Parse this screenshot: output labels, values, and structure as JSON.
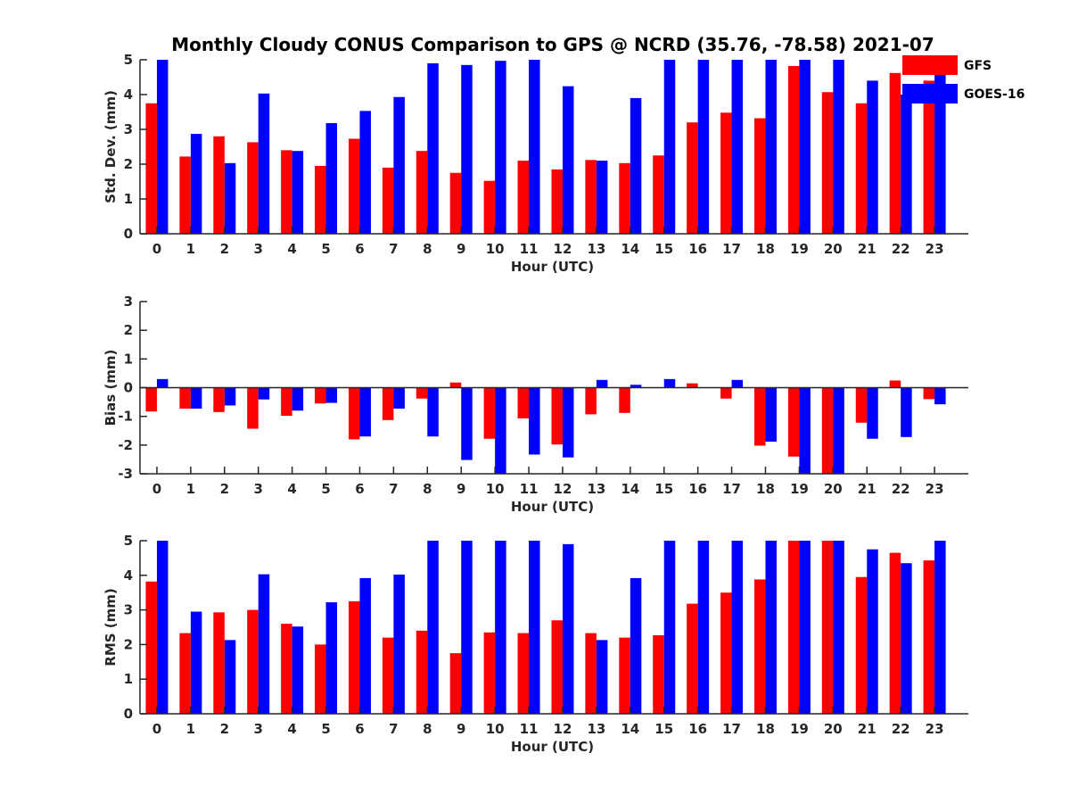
{
  "title": "Monthly Cloudy CONUS Comparison to GPS @ NCRD (35.76, -78.58) 2021-07",
  "colors": {
    "GFS": "#ff0000",
    "GOES-16": "#0000ff"
  },
  "legend": [
    "GFS",
    "GOES-16"
  ],
  "chart_data": [
    {
      "type": "bar",
      "xlabel": "Hour (UTC)",
      "ylabel": "Std. Dev. (mm)",
      "ylim": [
        0,
        5
      ],
      "yticks": [
        0,
        1,
        2,
        3,
        4,
        5
      ],
      "legend": "top-right",
      "categories": [
        "0",
        "1",
        "2",
        "3",
        "4",
        "5",
        "6",
        "7",
        "8",
        "9",
        "10",
        "11",
        "12",
        "13",
        "14",
        "15",
        "16",
        "17",
        "18",
        "19",
        "20",
        "21",
        "22",
        "23"
      ],
      "series": [
        {
          "name": "GFS",
          "values": [
            3.75,
            2.22,
            2.8,
            2.63,
            2.4,
            1.95,
            2.73,
            1.9,
            2.38,
            1.75,
            1.52,
            2.1,
            1.85,
            2.12,
            2.03,
            2.25,
            3.2,
            3.48,
            3.32,
            4.82,
            4.07,
            3.75,
            4.62,
            4.4
          ]
        },
        {
          "name": "GOES-16",
          "values": [
            5,
            2.87,
            2.03,
            4.03,
            2.38,
            3.18,
            3.53,
            3.93,
            4.9,
            4.85,
            4.97,
            5,
            4.24,
            2.1,
            3.9,
            5,
            5,
            5,
            5,
            5,
            5,
            4.4,
            4,
            4.8
          ]
        }
      ]
    },
    {
      "type": "bar",
      "xlabel": "Hour (UTC)",
      "ylabel": "Bias (mm)",
      "ylim": [
        -3,
        3
      ],
      "yticks": [
        -3,
        -2,
        -1,
        0,
        1,
        2,
        3
      ],
      "categories": [
        "0",
        "1",
        "2",
        "3",
        "4",
        "5",
        "6",
        "7",
        "8",
        "9",
        "10",
        "11",
        "12",
        "13",
        "14",
        "15",
        "16",
        "17",
        "18",
        "19",
        "20",
        "21",
        "22",
        "23"
      ],
      "series": [
        {
          "name": "GFS",
          "values": [
            -0.83,
            -0.73,
            -0.85,
            -1.43,
            -0.98,
            -0.55,
            -1.8,
            -1.13,
            -0.38,
            0.18,
            -1.78,
            -1.07,
            -1.98,
            -0.93,
            -0.88,
            0.0,
            0.15,
            -0.38,
            -2.02,
            -2.4,
            -3.0,
            -1.22,
            0.25,
            -0.4
          ]
        },
        {
          "name": "GOES-16",
          "values": [
            0.3,
            -0.73,
            -0.62,
            -0.41,
            -0.8,
            -0.53,
            -1.7,
            -0.73,
            -1.7,
            -2.52,
            -3.0,
            -2.33,
            -2.43,
            0.27,
            0.1,
            0.3,
            0.0,
            0.27,
            -1.88,
            -3.0,
            -3.0,
            -1.78,
            -1.72,
            -0.58
          ]
        }
      ]
    },
    {
      "type": "bar",
      "xlabel": "Hour (UTC)",
      "ylabel": "RMS (mm)",
      "ylim": [
        0,
        5
      ],
      "yticks": [
        0,
        1,
        2,
        3,
        4,
        5
      ],
      "categories": [
        "0",
        "1",
        "2",
        "3",
        "4",
        "5",
        "6",
        "7",
        "8",
        "9",
        "10",
        "11",
        "12",
        "13",
        "14",
        "15",
        "16",
        "17",
        "18",
        "19",
        "20",
        "21",
        "22",
        "23"
      ],
      "series": [
        {
          "name": "GFS",
          "values": [
            3.82,
            2.33,
            2.93,
            3.0,
            2.6,
            2.0,
            3.25,
            2.2,
            2.4,
            1.75,
            2.35,
            2.33,
            2.7,
            2.33,
            2.2,
            2.27,
            3.18,
            3.5,
            3.88,
            5,
            5,
            3.95,
            4.65,
            4.43
          ]
        },
        {
          "name": "GOES-16",
          "values": [
            5,
            2.95,
            2.13,
            4.03,
            2.52,
            3.22,
            3.92,
            4.02,
            5,
            5,
            5,
            5,
            4.9,
            2.13,
            3.92,
            5,
            5,
            5,
            5,
            5,
            5,
            4.75,
            4.35,
            5
          ]
        }
      ]
    }
  ]
}
